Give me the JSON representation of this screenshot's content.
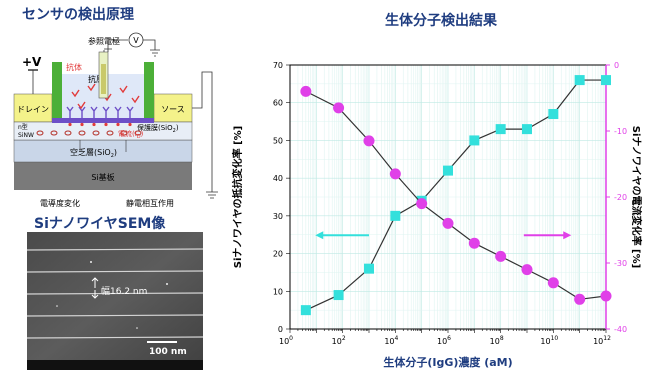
{
  "left_title": "センサの検出原理",
  "sem_title": "SiナノワイヤSEM像",
  "schematic": {
    "voltage": "+V",
    "ref_electrode": "参照電極",
    "voltmeter": "V",
    "antibody_tag": "抗体",
    "antigen": "抗原",
    "drain": "ドレイン",
    "source": "ソース",
    "n_type": "n型",
    "siNW": "SiNW",
    "protective_film": "保護膜(SiO",
    "protective_film_sub": "2",
    "protective_film_close": ")",
    "current": "電流(I",
    "current_sub": "D",
    "current_close": ")",
    "buried_layer": "空乏層(SiO",
    "buried_layer_sub": "2",
    "buried_layer_close": ")",
    "si_substrate": "Si基板",
    "conductivity_change": "電導度変化",
    "electrostatic": "静電相互作用"
  },
  "sem": {
    "width_label": "幅16.2 nm",
    "scale_label": "100 nm"
  },
  "chart_data": {
    "type": "line",
    "title": "生体分子検出結果",
    "xlabel": "生体分子(IgG)濃度 (aM)",
    "ylabel_left": "Siナノワイヤの抵抗変化率 [%]",
    "ylabel_right": "Siナノワイヤの電流変化率 [%]",
    "x_scale": "log",
    "x_ticks": [
      {
        "base": "10",
        "exp": "0",
        "value": 1
      },
      {
        "base": "10",
        "exp": "2",
        "value": 100
      },
      {
        "base": "10",
        "exp": "4",
        "value": 10000
      },
      {
        "base": "10",
        "exp": "6",
        "value": 1000000
      },
      {
        "base": "10",
        "exp": "8",
        "value": 100000000
      },
      {
        "base": "10",
        "exp": "10",
        "value": 10000000000
      },
      {
        "base": "10",
        "exp": "12",
        "value": 1000000000000
      }
    ],
    "xlim": [
      1,
      1000000000000
    ],
    "ylim_left": [
      0,
      70
    ],
    "ylim_right": [
      -40,
      0
    ],
    "y_ticks_left": [
      "0",
      "10",
      "20",
      "30",
      "40",
      "50",
      "60",
      "70"
    ],
    "y_ticks_right": [
      "0",
      "-10",
      "-20",
      "-30",
      "-40"
    ],
    "grid": true,
    "series": [
      {
        "axis": "left",
        "marker": "square",
        "color": "#33e0dc",
        "x": [
          4,
          70,
          1000,
          10000,
          100000,
          1000000,
          10000000,
          100000000,
          1000000000,
          10000000000,
          100000000000,
          1000000000000
        ],
        "values": [
          5,
          9,
          16,
          30,
          34,
          42,
          50,
          53,
          53,
          57,
          66,
          66
        ]
      },
      {
        "axis": "right",
        "marker": "circle",
        "color": "#e040e8",
        "x": [
          4,
          70,
          1000,
          10000,
          100000,
          1000000,
          10000000,
          100000000,
          1000000000,
          10000000000,
          100000000000,
          1000000000000
        ],
        "values": [
          -4,
          -6.5,
          -11.5,
          -16.5,
          -21,
          -24,
          -27,
          -29,
          -31,
          -33,
          -35.5,
          -35
        ]
      }
    ],
    "arrows": [
      {
        "direction": "left",
        "color": "#33e0dc"
      },
      {
        "direction": "right",
        "color": "#e040e8"
      }
    ],
    "colors": {
      "left_axis": "#000000",
      "right_axis": "#e040e8",
      "line": "#333333"
    }
  }
}
